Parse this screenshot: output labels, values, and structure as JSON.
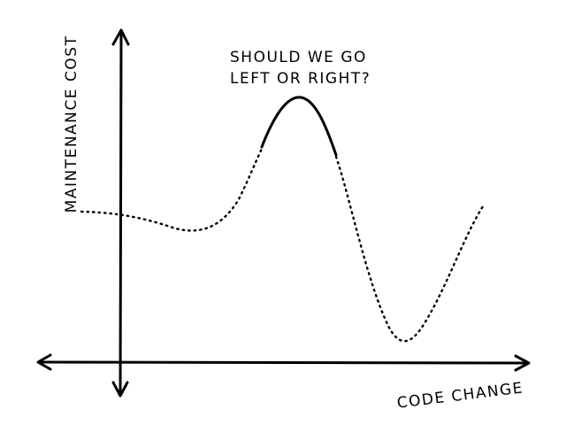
{
  "diagram": {
    "y_axis_label": "MAINTENANCE COST",
    "x_axis_label": "CODE CHANGE",
    "annotation": {
      "line1": "SHOULD WE GO",
      "line2": "LEFT OR RIGHT?"
    },
    "colors": {
      "ink": "#000000",
      "background": "#ffffff"
    }
  }
}
